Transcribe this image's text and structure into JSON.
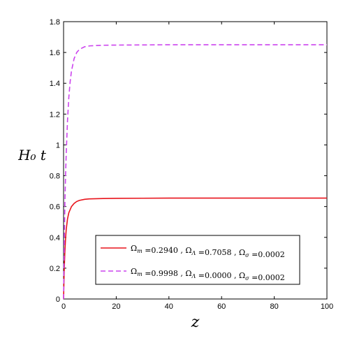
{
  "chart_data": {
    "type": "line",
    "xlabel": "z",
    "ylabel": "H₀ t",
    "xlim": [
      0,
      100
    ],
    "ylim": [
      0,
      1.8
    ],
    "xticks": [
      "0",
      "20",
      "40",
      "60",
      "80",
      "100"
    ],
    "yticks": [
      "0",
      "0.2",
      "0.4",
      "0.6",
      "0.8",
      "1",
      "1.2",
      "1.4",
      "1.6",
      "1.8"
    ],
    "grid": false,
    "legend_position": "bottom-right",
    "series": [
      {
        "name": "Ωm =0.2940 , ΩΛ =0.7058 , Ωσ =0.0002",
        "color": "#e8141c",
        "dash": "solid",
        "x": [
          0,
          0.25,
          0.5,
          0.75,
          1,
          1.5,
          2,
          3,
          4,
          5,
          6,
          8,
          10,
          15,
          20,
          30,
          40,
          50,
          60,
          70,
          80,
          90,
          100
        ],
        "y": [
          0,
          0.19,
          0.31,
          0.39,
          0.45,
          0.52,
          0.56,
          0.6,
          0.62,
          0.633,
          0.64,
          0.647,
          0.65,
          0.652,
          0.653,
          0.654,
          0.655,
          0.655,
          0.655,
          0.655,
          0.655,
          0.655,
          0.655
        ]
      },
      {
        "name": "Ωm =0.9998 , ΩΛ =0.0000 , Ωσ =0.0002",
        "color": "#cc44ee",
        "dash": "dashed",
        "x": [
          0,
          0.25,
          0.5,
          0.75,
          1,
          1.5,
          2,
          2.5,
          3,
          4,
          5,
          6,
          8,
          10,
          15,
          20,
          30,
          40,
          50,
          60,
          70,
          80,
          90,
          100
        ],
        "y": [
          0,
          0.35,
          0.62,
          0.8,
          0.94,
          1.16,
          1.31,
          1.41,
          1.48,
          1.56,
          1.6,
          1.62,
          1.637,
          1.643,
          1.647,
          1.648,
          1.649,
          1.65,
          1.65,
          1.65,
          1.65,
          1.65,
          1.65,
          1.65
        ]
      }
    ]
  },
  "legend": {
    "entries": [
      {
        "parts": [
          {
            "t": "Ω",
            "s": "m"
          },
          {
            "t": " =0.2940 ,  Ω",
            "s": "Λ"
          },
          {
            "t": " =0.7058 ,  Ω",
            "s": "σ"
          },
          {
            "t": " =0.0002",
            "s": ""
          }
        ]
      },
      {
        "parts": [
          {
            "t": "Ω",
            "s": "m"
          },
          {
            "t": " =0.9998 ,  Ω",
            "s": "Λ"
          },
          {
            "t": " =0.0000 ,  Ω",
            "s": "σ"
          },
          {
            "t": " =0.0002",
            "s": ""
          }
        ]
      }
    ]
  }
}
